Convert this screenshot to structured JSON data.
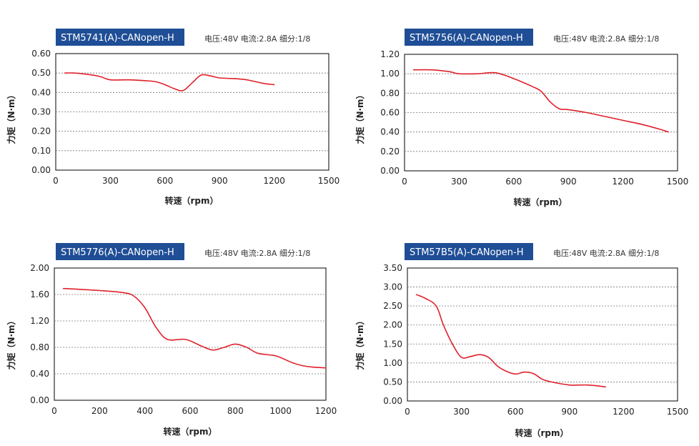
{
  "chart_data": [
    {
      "type": "line",
      "title": "STM5741(A)-CANopen-H",
      "subtitle": "电压:48V  电流:2.8A  细分:1/8",
      "xlabel": "转速（rpm）",
      "ylabel": "力矩（N·m）",
      "xlim": [
        0,
        1500
      ],
      "ylim": [
        0,
        0.6
      ],
      "xticks": [
        0,
        300,
        600,
        900,
        1200,
        1500
      ],
      "yticks": [
        0.0,
        0.1,
        0.2,
        0.3,
        0.4,
        0.5,
        0.6
      ],
      "xtick_labels": [
        "0",
        "300",
        "600",
        "900",
        "1200",
        "1500"
      ],
      "ytick_labels": [
        "0.00",
        "0.10",
        "0.20",
        "0.30",
        "0.40",
        "0.50",
        "0.60"
      ],
      "grid": true,
      "color": "#e0202a",
      "x": [
        50,
        100,
        200,
        250,
        300,
        400,
        500,
        550,
        600,
        650,
        700,
        750,
        800,
        850,
        900,
        1000,
        1050,
        1100,
        1150,
        1200
      ],
      "y": [
        0.5,
        0.5,
        0.49,
        0.48,
        0.465,
        0.465,
        0.46,
        0.455,
        0.44,
        0.42,
        0.41,
        0.45,
        0.49,
        0.485,
        0.475,
        0.47,
        0.465,
        0.455,
        0.445,
        0.44
      ]
    },
    {
      "type": "line",
      "title": "STM5756(A)-CANopen-H",
      "subtitle": "电压:48V  电流:2.8A  细分:1/8",
      "xlabel": "转速（rpm）",
      "ylabel": "力矩（N·m）",
      "xlim": [
        0,
        1500
      ],
      "ylim": [
        0,
        1.2
      ],
      "xticks": [
        0,
        300,
        600,
        900,
        1200,
        1500
      ],
      "yticks": [
        0.0,
        0.2,
        0.4,
        0.6,
        0.8,
        1.0,
        1.2
      ],
      "xtick_labels": [
        "0",
        "300",
        "600",
        "900",
        "1200",
        "1500"
      ],
      "ytick_labels": [
        "0.00",
        "0.20",
        "0.40",
        "0.60",
        "0.80",
        "1.00",
        "1.20"
      ],
      "grid": true,
      "color": "#e0202a",
      "x": [
        50,
        150,
        250,
        300,
        400,
        500,
        600,
        700,
        750,
        800,
        850,
        900,
        1000,
        1100,
        1200,
        1300,
        1400,
        1450
      ],
      "y": [
        1.04,
        1.04,
        1.02,
        1.0,
        1.0,
        1.01,
        0.95,
        0.87,
        0.82,
        0.71,
        0.64,
        0.63,
        0.6,
        0.56,
        0.52,
        0.48,
        0.43,
        0.4
      ]
    },
    {
      "type": "line",
      "title": "STM5776(A)-CANopen-H",
      "subtitle": "电压:48V  电流:2.8A  细分:1/8",
      "xlabel": "转速（rpm）",
      "ylabel": "力矩（N·m）",
      "xlim": [
        0,
        1200
      ],
      "ylim": [
        0,
        2.0
      ],
      "xticks": [
        0,
        200,
        400,
        600,
        800,
        1000,
        1200
      ],
      "yticks": [
        0.0,
        0.4,
        0.8,
        1.2,
        1.6,
        2.0
      ],
      "xtick_labels": [
        "0",
        "200",
        "400",
        "600",
        "800",
        "1000",
        "1200"
      ],
      "ytick_labels": [
        "0.00",
        "0.40",
        "0.80",
        "1.20",
        "1.60",
        "2.00"
      ],
      "grid": true,
      "color": "#e0202a",
      "x": [
        40,
        100,
        200,
        300,
        350,
        400,
        450,
        500,
        580,
        650,
        700,
        750,
        800,
        850,
        900,
        980,
        1050,
        1100,
        1150,
        1200
      ],
      "y": [
        1.69,
        1.68,
        1.66,
        1.63,
        1.58,
        1.4,
        1.1,
        0.92,
        0.92,
        0.82,
        0.76,
        0.8,
        0.85,
        0.8,
        0.71,
        0.67,
        0.57,
        0.52,
        0.5,
        0.49
      ]
    },
    {
      "type": "line",
      "title": "STM57B5(A)-CANopen-H",
      "subtitle": "电压:48V  电流:2.8A  细分:1/8",
      "xlabel": "转速（rpm）",
      "ylabel": "力矩（N·m）",
      "xlim": [
        0,
        1500
      ],
      "ylim": [
        0,
        3.5
      ],
      "xticks": [
        0,
        300,
        600,
        900,
        1200,
        1500
      ],
      "yticks": [
        0.0,
        0.5,
        1.0,
        1.5,
        2.0,
        2.5,
        3.0,
        3.5
      ],
      "xtick_labels": [
        "0",
        "300",
        "600",
        "900",
        "1200",
        "1500"
      ],
      "ytick_labels": [
        "0.00",
        "0.50",
        "1.00",
        "1.50",
        "2.00",
        "2.50",
        "3.00",
        "3.50"
      ],
      "grid": true,
      "color": "#e0202a",
      "x": [
        50,
        100,
        160,
        200,
        250,
        300,
        350,
        400,
        450,
        500,
        550,
        600,
        650,
        700,
        750,
        800,
        900,
        950,
        1000,
        1050,
        1100
      ],
      "y": [
        2.8,
        2.7,
        2.5,
        2.0,
        1.5,
        1.15,
        1.17,
        1.22,
        1.15,
        0.92,
        0.78,
        0.71,
        0.76,
        0.72,
        0.57,
        0.5,
        0.42,
        0.42,
        0.42,
        0.4,
        0.37
      ]
    }
  ]
}
